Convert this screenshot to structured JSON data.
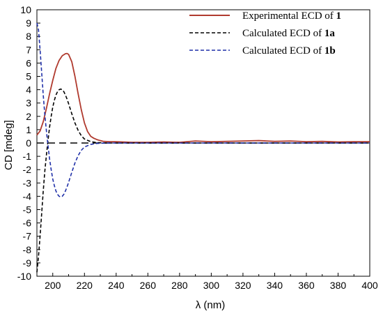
{
  "chart_data": {
    "type": "line",
    "title": "",
    "xlabel": "λ (nm)",
    "ylabel": "CD [mdeg]",
    "xlim": [
      190,
      400
    ],
    "ylim": [
      -10,
      10
    ],
    "x_ticks": [
      200,
      220,
      240,
      260,
      280,
      300,
      320,
      340,
      360,
      380,
      400
    ],
    "y_ticks": [
      -10,
      -9,
      -8,
      -7,
      -6,
      -5,
      -4,
      -3,
      -2,
      -1,
      0,
      1,
      2,
      3,
      4,
      5,
      6,
      7,
      8,
      9,
      10
    ],
    "grid": false,
    "legend_position": "top-right",
    "zero_line": true,
    "series": [
      {
        "name_prefix": "Experimental ECD of ",
        "name_bold": "1",
        "color": "#b03a2e",
        "style": "solid",
        "x": [
          190,
          192,
          194,
          196,
          198,
          200,
          202,
          204,
          206,
          208,
          209,
          210,
          212,
          214,
          216,
          218,
          220,
          222,
          224,
          226,
          228,
          230,
          232,
          236,
          240,
          250,
          260,
          270,
          280,
          290,
          300,
          310,
          320,
          330,
          340,
          350,
          360,
          370,
          380,
          390,
          400
        ],
        "values": [
          0.6,
          0.9,
          1.6,
          2.6,
          3.7,
          4.7,
          5.6,
          6.2,
          6.55,
          6.7,
          6.72,
          6.65,
          6.1,
          5.0,
          3.7,
          2.5,
          1.5,
          0.85,
          0.5,
          0.35,
          0.25,
          0.18,
          0.12,
          0.1,
          0.1,
          0.05,
          0.05,
          0.08,
          0.05,
          0.15,
          0.1,
          0.12,
          0.15,
          0.18,
          0.12,
          0.15,
          0.1,
          0.12,
          0.08,
          0.1,
          0.1
        ]
      },
      {
        "name_prefix": "Calculated ECD of ",
        "name_bold": "1a",
        "color": "#000000",
        "style": "dashed",
        "x": [
          190,
          191,
          192,
          193,
          194,
          195,
          196,
          197,
          198,
          199,
          200,
          201,
          202,
          203,
          204,
          205,
          206,
          207,
          208,
          209,
          210,
          212,
          214,
          216,
          218,
          220,
          224,
          228,
          232,
          236,
          240,
          260,
          280,
          300,
          320,
          340,
          360,
          380,
          400
        ],
        "values": [
          -9.7,
          -8.5,
          -7.0,
          -5.3,
          -3.6,
          -2.1,
          -0.9,
          0.2,
          1.2,
          2.0,
          2.7,
          3.2,
          3.6,
          3.85,
          4.0,
          4.05,
          4.0,
          3.85,
          3.6,
          3.3,
          2.95,
          2.2,
          1.5,
          0.95,
          0.55,
          0.3,
          0.1,
          0.03,
          0.01,
          0.0,
          0.0,
          0.0,
          0.0,
          0.0,
          0.0,
          0.0,
          0.0,
          0.0,
          0.0
        ]
      },
      {
        "name_prefix": "Calculated ECD of ",
        "name_bold": "1b",
        "color": "#1f2fa8",
        "style": "dashed",
        "x": [
          190,
          191,
          192,
          193,
          194,
          195,
          196,
          197,
          198,
          199,
          200,
          201,
          202,
          203,
          204,
          205,
          206,
          207,
          208,
          209,
          210,
          212,
          214,
          216,
          218,
          220,
          224,
          228,
          232,
          236,
          240,
          260,
          280,
          300,
          320,
          340,
          360,
          380,
          400
        ],
        "values": [
          9.0,
          8.5,
          7.0,
          5.3,
          3.6,
          2.1,
          0.9,
          -0.2,
          -1.2,
          -2.0,
          -2.7,
          -3.2,
          -3.6,
          -3.85,
          -4.0,
          -4.05,
          -4.0,
          -3.85,
          -3.6,
          -3.3,
          -2.95,
          -2.2,
          -1.5,
          -0.95,
          -0.55,
          -0.3,
          -0.1,
          -0.03,
          -0.01,
          0.0,
          0.0,
          0.0,
          0.0,
          0.0,
          0.0,
          0.0,
          0.0,
          0.0,
          0.0
        ]
      }
    ]
  }
}
